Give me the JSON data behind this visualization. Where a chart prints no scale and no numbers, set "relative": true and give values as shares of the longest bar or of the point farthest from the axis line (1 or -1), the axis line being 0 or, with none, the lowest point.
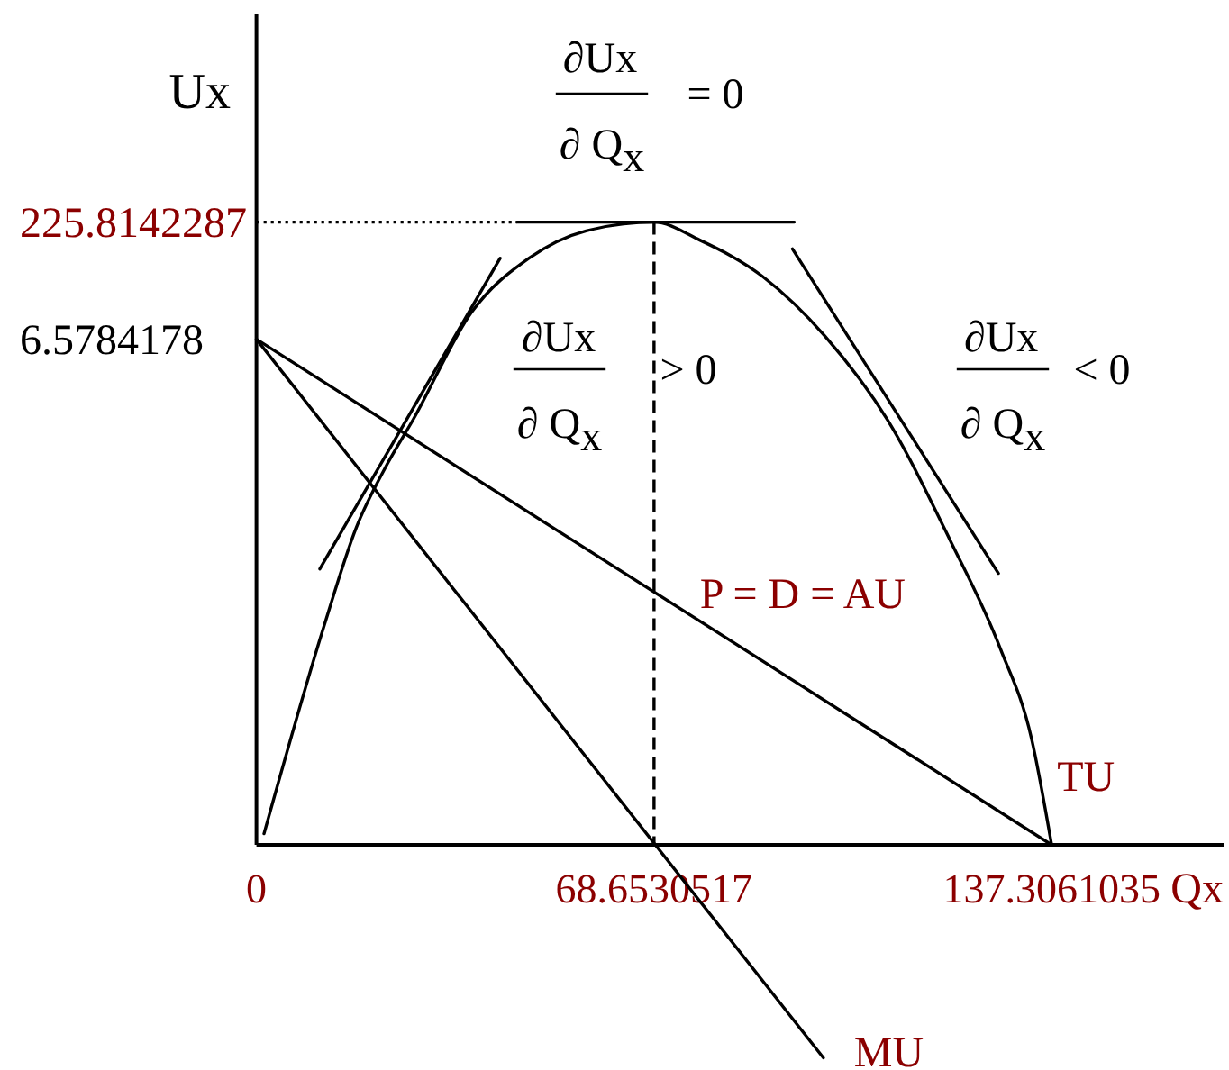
{
  "chart_data": {
    "type": "line",
    "relative": true,
    "xlabel": "Qx",
    "ylabel": "Ux",
    "xlim": [
      0,
      167
    ],
    "xticks": [
      0,
      68.6530517,
      137.3061035
    ],
    "series": [
      {
        "name": "TU",
        "color": "#000000",
        "x": [
          1.31,
          11.76,
          17.22,
          22.21,
          27.07,
          37.13,
          47.07,
          56.92,
          68.6530517,
          76.56,
          87.36,
          98.16,
          108.99,
          119.79,
          128.45,
          133.83,
          137.3061035
        ],
        "values": [
          0.018,
          0.354,
          0.509,
          0.605,
          0.683,
          0.855,
          0.942,
          0.986,
          1,
          0.971,
          0.913,
          0.817,
          0.682,
          0.489,
          0.315,
          0.171,
          0
        ]
      },
      {
        "name": "P = D = AU",
        "color": "#000000",
        "x": [
          0,
          137.3061035
        ],
        "values": [
          0.812,
          0
        ]
      },
      {
        "name": "MU",
        "color": "#000000",
        "x": [
          0,
          97.9
        ],
        "values": [
          0.812,
          -0.342
        ]
      },
      {
        "color": "#000000",
        "x": [
          10.95,
          42.09
        ],
        "values": [
          0.443,
          0.942
        ]
      },
      {
        "color": "#000000",
        "x": [
          44.98,
          92.88
        ],
        "values": [
          1,
          1
        ]
      },
      {
        "color": "#000000",
        "x": [
          92.55,
          128.12
        ],
        "values": [
          0.957,
          0.436
        ]
      },
      {
        "color": "#000000",
        "x": [
          0,
          44.98
        ],
        "values": [
          1,
          1
        ],
        "line_style": "dotted"
      },
      {
        "color": "#000000",
        "x": [
          68.6530517,
          68.6530517
        ],
        "values": [
          1,
          0
        ],
        "line_style": "dashed"
      }
    ],
    "annotations": [
      {
        "text": "225.8142287",
        "x": 0,
        "y": 1
      },
      {
        "text": "6.5784178",
        "x": 0,
        "y": 0.812
      },
      "∂Ux",
      "∂ Q$_{x}$",
      "= 0",
      "∂Ux",
      "∂ Q$_{x}$",
      "> 0",
      "∂Ux",
      "∂ Q$_{x}$",
      "< 0"
    ]
  }
}
